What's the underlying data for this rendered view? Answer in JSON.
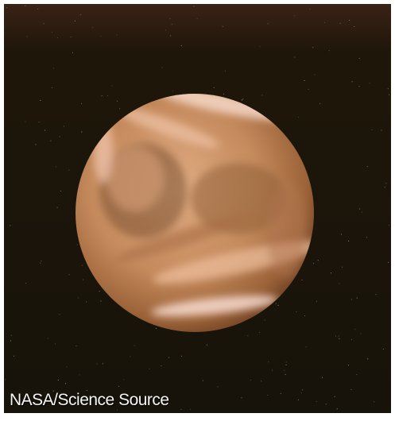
{
  "credit": "NASA/Science Source"
}
